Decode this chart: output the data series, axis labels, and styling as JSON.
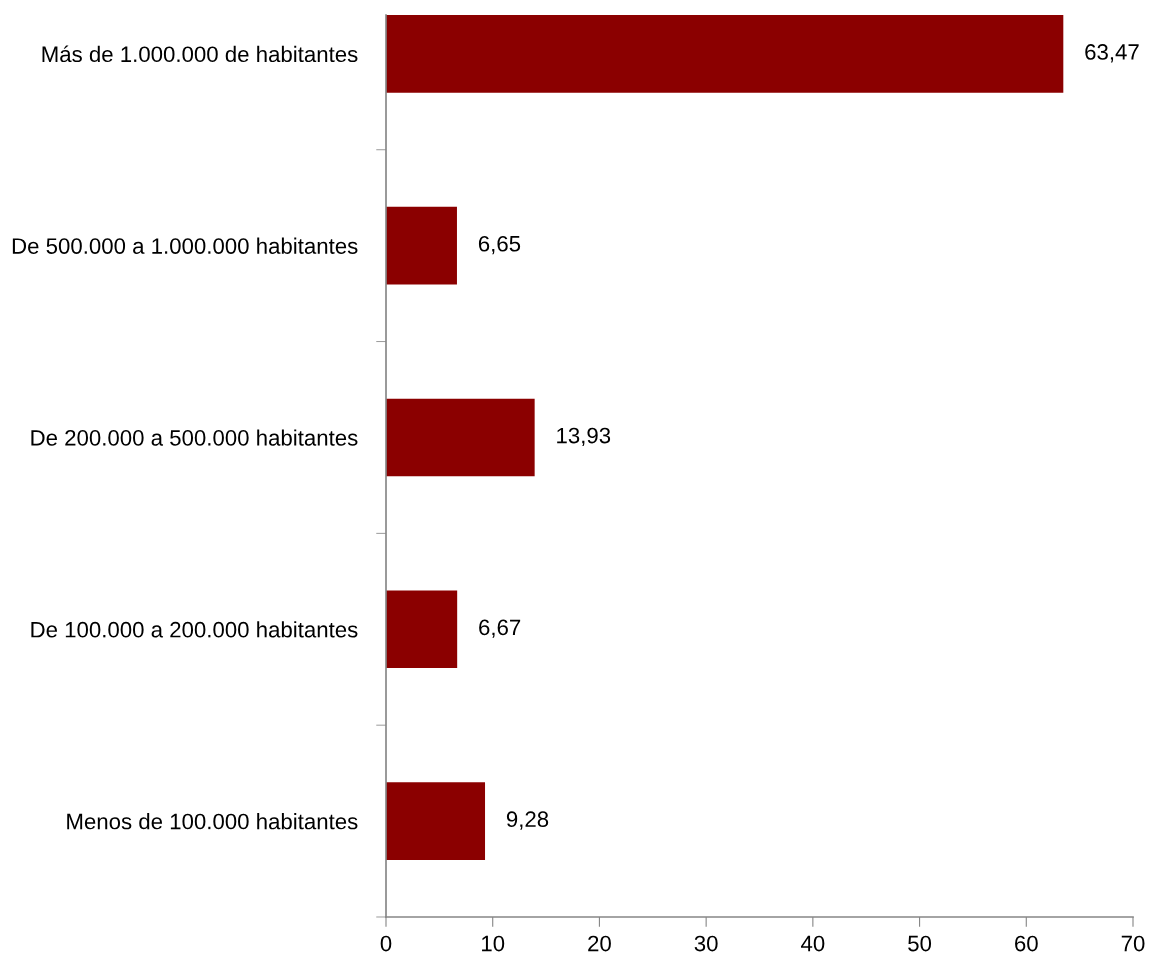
{
  "chart_data": {
    "type": "bar",
    "orientation": "horizontal",
    "categories": [
      "Más de 1.000.000 de habitantes",
      "De 500.000 a 1.000.000 habitantes",
      "De 200.000 a 500.000 habitantes",
      "De 100.000 a 200.000 habitantes",
      "Menos de 100.000 habitantes"
    ],
    "values": [
      63.47,
      6.65,
      13.93,
      6.67,
      9.28
    ],
    "color": "#8b0000",
    "value_labels": [
      "63,47",
      "6,65",
      "13,93",
      "6,67",
      "9,28"
    ],
    "xlim": [
      0,
      70
    ],
    "xticks": [
      0,
      10,
      20,
      30,
      40,
      50,
      60,
      70
    ],
    "grid": false
  }
}
